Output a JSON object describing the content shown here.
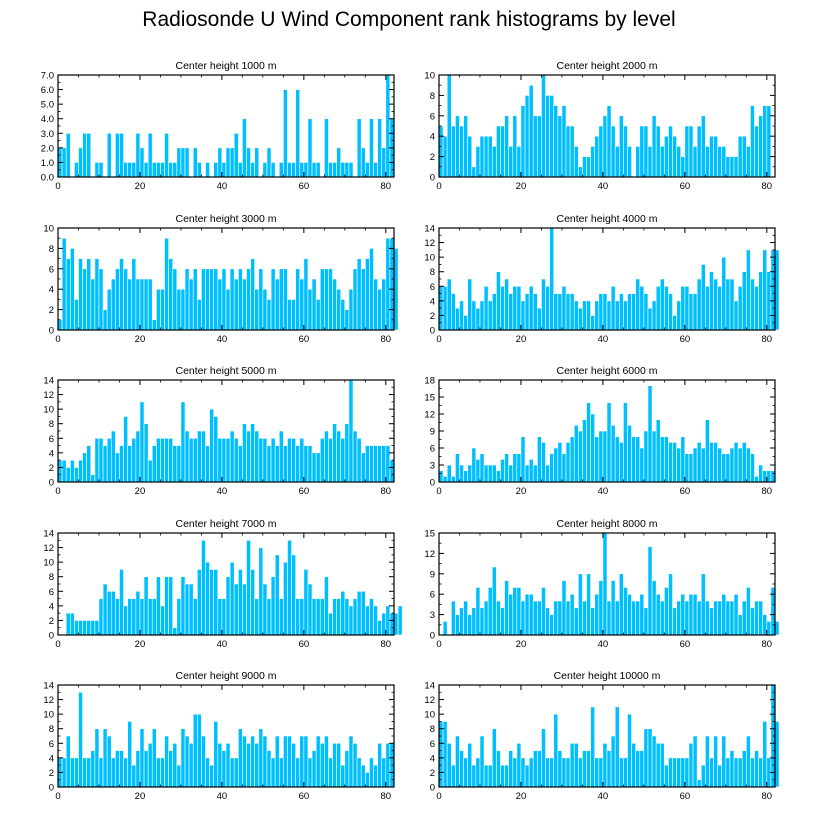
{
  "title": "Radiosonde U Wind Component rank histograms by level",
  "bar_color": "#00bfff",
  "bar_edge": "#ffffff",
  "chart_data": [
    {
      "type": "bar",
      "title": "Center height 1000 m",
      "xlim": [
        0,
        82
      ],
      "ylim": [
        0,
        7
      ],
      "x_ticks": [
        0,
        20,
        40,
        60,
        80
      ],
      "y_ticks": [
        0,
        1,
        2,
        3,
        4,
        5,
        6,
        7
      ],
      "y_tick_labels": [
        "0.0",
        "1.0",
        "2.0",
        "3.0",
        "4.0",
        "5.0",
        "6.0",
        "7.0"
      ],
      "values": [
        2,
        2,
        3,
        0,
        1,
        2,
        3,
        3,
        0,
        1,
        1,
        0,
        3,
        0,
        3,
        3,
        1,
        1,
        1,
        3,
        2,
        1,
        3,
        1,
        1,
        1,
        3,
        1,
        1,
        2,
        2,
        2,
        0,
        2,
        1,
        0,
        1,
        0,
        1,
        2,
        1,
        2,
        2,
        3,
        1,
        4,
        2,
        1,
        2,
        0,
        1,
        2,
        1,
        0,
        1,
        6,
        1,
        1,
        6,
        1,
        1,
        4,
        1,
        1,
        0,
        4,
        1,
        1,
        2,
        1,
        1,
        1,
        0,
        4,
        2,
        1,
        4,
        1,
        4,
        2,
        7,
        4
      ]
    },
    {
      "type": "bar",
      "title": "Center height 2000 m",
      "xlim": [
        0,
        82
      ],
      "ylim": [
        0,
        10
      ],
      "x_ticks": [
        0,
        20,
        40,
        60,
        80
      ],
      "y_ticks": [
        0,
        2,
        4,
        6,
        8,
        10
      ],
      "values": [
        5,
        4,
        10,
        5,
        6,
        5,
        6,
        4,
        1,
        3,
        4,
        4,
        4,
        3,
        5,
        5,
        6,
        3,
        6,
        3,
        7,
        8,
        9,
        6,
        6,
        10,
        8,
        8,
        7,
        6,
        7,
        5,
        5,
        3,
        1,
        2,
        2,
        3,
        4,
        5,
        6,
        7,
        5,
        3,
        6,
        5,
        3,
        0,
        3,
        5,
        5,
        3,
        6,
        5,
        3,
        4,
        5,
        4,
        3,
        2,
        5,
        5,
        3,
        5,
        6,
        3,
        4,
        4,
        3,
        3,
        2,
        2,
        2,
        4,
        4,
        3,
        7,
        5,
        6,
        7,
        7
      ]
    },
    {
      "type": "bar",
      "title": "Center height 3000 m",
      "xlim": [
        0,
        82
      ],
      "ylim": [
        0,
        10
      ],
      "x_ticks": [
        0,
        20,
        40,
        60,
        80
      ],
      "y_ticks": [
        0,
        2,
        4,
        6,
        8,
        10
      ],
      "values": [
        1,
        9,
        7,
        8,
        3,
        7,
        6,
        7,
        5,
        7,
        6,
        2,
        4,
        5,
        6,
        7,
        6,
        5,
        7,
        5,
        5,
        5,
        5,
        1,
        4,
        4,
        9,
        7,
        6,
        4,
        4,
        6,
        5,
        6,
        3,
        6,
        6,
        6,
        6,
        5,
        6,
        4,
        6,
        5,
        6,
        5,
        6,
        7,
        4,
        6,
        4,
        3,
        6,
        5,
        6,
        6,
        3,
        3,
        6,
        5,
        7,
        4,
        5,
        3,
        6,
        6,
        6,
        5,
        4,
        3,
        2,
        4,
        6,
        7,
        6,
        7,
        8,
        5,
        4,
        5,
        9,
        9,
        8
      ]
    },
    {
      "type": "bar",
      "title": "Center height 4000 m",
      "xlim": [
        0,
        82
      ],
      "ylim": [
        0,
        14
      ],
      "x_ticks": [
        0,
        20,
        40,
        60,
        80
      ],
      "y_ticks": [
        0,
        2,
        4,
        6,
        8,
        10,
        12,
        14
      ],
      "values": [
        6,
        6,
        7,
        5,
        3,
        4,
        2,
        7,
        4,
        3,
        4,
        6,
        4,
        5,
        8,
        6,
        7,
        5,
        6,
        6,
        4,
        5,
        6,
        5,
        3,
        7,
        6,
        14,
        5,
        5,
        6,
        5,
        5,
        4,
        3,
        4,
        4,
        2,
        4,
        5,
        5,
        4,
        6,
        4,
        5,
        4,
        5,
        5,
        7,
        6,
        5,
        3,
        4,
        6,
        7,
        6,
        5,
        2,
        4,
        6,
        6,
        5,
        5,
        7,
        9,
        6,
        8,
        7,
        6,
        10,
        7,
        7,
        4,
        6,
        8,
        11,
        7,
        6,
        8,
        11,
        8,
        11,
        11
      ]
    },
    {
      "type": "bar",
      "title": "Center height 5000 m",
      "xlim": [
        0,
        82
      ],
      "ylim": [
        0,
        14
      ],
      "x_ticks": [
        0,
        20,
        40,
        60,
        80
      ],
      "y_ticks": [
        0,
        2,
        4,
        6,
        8,
        10,
        12,
        14
      ],
      "values": [
        3,
        3,
        2,
        3,
        2,
        3,
        4,
        5,
        1,
        6,
        6,
        5,
        6,
        7,
        4,
        5,
        9,
        5,
        6,
        7,
        11,
        8,
        3,
        5,
        6,
        6,
        6,
        6,
        5,
        5,
        11,
        7,
        6,
        6,
        7,
        7,
        5,
        10,
        9,
        6,
        6,
        6,
        7,
        6,
        5,
        8,
        7,
        8,
        7,
        6,
        6,
        5,
        6,
        5,
        7,
        5,
        6,
        6,
        5,
        6,
        5,
        5,
        4,
        4,
        6,
        7,
        6,
        8,
        7,
        6,
        8,
        14,
        7,
        6,
        4,
        5,
        5,
        5,
        5,
        5,
        5,
        3
      ]
    },
    {
      "type": "bar",
      "title": "Center height 6000 m",
      "xlim": [
        0,
        82
      ],
      "ylim": [
        0,
        18
      ],
      "x_ticks": [
        0,
        20,
        40,
        60,
        80
      ],
      "y_ticks": [
        0,
        3,
        6,
        9,
        12,
        15,
        18
      ],
      "values": [
        2,
        1,
        3,
        1,
        5,
        3,
        2,
        3,
        6,
        4,
        5,
        3,
        3,
        3,
        2,
        4,
        5,
        3,
        5,
        5,
        8,
        3,
        4,
        3,
        8,
        7,
        3,
        5,
        6,
        7,
        5,
        7,
        8,
        10,
        9,
        11,
        14,
        12,
        8,
        9,
        9,
        14,
        10,
        8,
        7,
        14,
        10,
        8,
        8,
        6,
        9,
        17,
        9,
        11,
        8,
        8,
        7,
        7,
        6,
        8,
        5,
        5,
        6,
        7,
        6,
        11,
        7,
        7,
        6,
        5,
        5,
        6,
        7,
        6,
        7,
        6,
        5,
        1,
        3,
        2,
        2,
        2
      ]
    },
    {
      "type": "bar",
      "title": "Center height 7000 m",
      "xlim": [
        0,
        82
      ],
      "ylim": [
        0,
        14
      ],
      "x_ticks": [
        0,
        20,
        40,
        60,
        80
      ],
      "y_ticks": [
        0,
        2,
        4,
        6,
        8,
        10,
        12,
        14
      ],
      "values": [
        0,
        0,
        3,
        3,
        2,
        2,
        2,
        2,
        2,
        2,
        5,
        7,
        6,
        6,
        5,
        9,
        4,
        5,
        5,
        6,
        5,
        8,
        5,
        5,
        8,
        4,
        8,
        8,
        1,
        5,
        8,
        7,
        7,
        5,
        9,
        13,
        10,
        9,
        9,
        5,
        5,
        8,
        10,
        7,
        9,
        7,
        13,
        9,
        5,
        12,
        7,
        5,
        8,
        11,
        5,
        10,
        13,
        11,
        5,
        5,
        9,
        7,
        5,
        5,
        5,
        8,
        3,
        5,
        5,
        6,
        5,
        4,
        5,
        6,
        6,
        4,
        5,
        4,
        2,
        3,
        4,
        3,
        3,
        4
      ]
    },
    {
      "type": "bar",
      "title": "Center height 8000 m",
      "xlim": [
        0,
        82
      ],
      "ylim": [
        0,
        15
      ],
      "x_ticks": [
        0,
        20,
        40,
        60,
        80
      ],
      "y_ticks": [
        0,
        3,
        6,
        9,
        12,
        15
      ],
      "values": [
        0,
        2,
        0,
        5,
        3,
        4,
        5,
        3,
        4,
        7,
        4,
        5,
        7,
        10,
        5,
        4,
        8,
        6,
        7,
        7,
        5,
        6,
        6,
        5,
        5,
        7,
        4,
        3,
        5,
        5,
        8,
        5,
        6,
        4,
        9,
        5,
        9,
        4,
        6,
        8,
        15,
        5,
        8,
        5,
        9,
        7,
        6,
        5,
        5,
        6,
        4,
        13,
        8,
        6,
        5,
        7,
        9,
        4,
        5,
        6,
        5,
        6,
        6,
        5,
        9,
        5,
        4,
        5,
        5,
        6,
        5,
        5,
        6,
        3,
        5,
        7,
        4,
        5,
        5,
        3,
        2,
        7,
        2
      ]
    },
    {
      "type": "bar",
      "title": "Center height 9000 m",
      "xlim": [
        0,
        82
      ],
      "ylim": [
        0,
        14
      ],
      "x_ticks": [
        0,
        20,
        40,
        60,
        80
      ],
      "y_ticks": [
        0,
        2,
        4,
        6,
        8,
        10,
        12,
        14
      ],
      "values": [
        4,
        4,
        7,
        4,
        4,
        13,
        4,
        4,
        5,
        8,
        4,
        8,
        7,
        4,
        5,
        5,
        4,
        9,
        3,
        5,
        8,
        5,
        6,
        8,
        4,
        4,
        7,
        5,
        6,
        3,
        8,
        7,
        6,
        10,
        10,
        7,
        4,
        3,
        9,
        6,
        5,
        6,
        4,
        4,
        8,
        7,
        6,
        7,
        6,
        8,
        7,
        5,
        4,
        7,
        4,
        7,
        7,
        6,
        4,
        7,
        7,
        4,
        5,
        7,
        6,
        7,
        4,
        6,
        6,
        3,
        5,
        7,
        6,
        4,
        3,
        2,
        4,
        3,
        6,
        4,
        6,
        6
      ]
    },
    {
      "type": "bar",
      "title": "Center height 10000 m",
      "xlim": [
        0,
        82
      ],
      "ylim": [
        0,
        14
      ],
      "x_ticks": [
        0,
        20,
        40,
        60,
        80
      ],
      "y_ticks": [
        0,
        2,
        4,
        6,
        8,
        10,
        12,
        14
      ],
      "values": [
        9,
        9,
        6,
        3,
        7,
        5,
        4,
        6,
        3,
        4,
        7,
        3,
        3,
        8,
        5,
        3,
        3,
        5,
        4,
        6,
        4,
        3,
        4,
        5,
        5,
        8,
        4,
        4,
        10,
        5,
        4,
        4,
        6,
        6,
        4,
        5,
        5,
        11,
        4,
        4,
        6,
        5,
        7,
        11,
        4,
        4,
        10,
        6,
        5,
        5,
        8,
        8,
        7,
        6,
        6,
        3,
        4,
        4,
        4,
        4,
        4,
        6,
        7,
        1,
        3,
        7,
        4,
        7,
        3,
        7,
        4,
        5,
        4,
        4,
        5,
        7,
        4,
        5,
        4,
        9,
        4,
        14,
        9
      ]
    }
  ]
}
